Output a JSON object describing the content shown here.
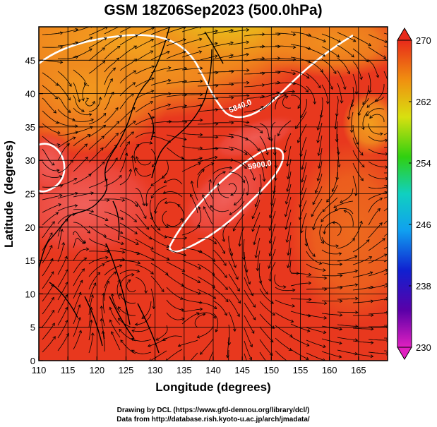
{
  "title": "GSM 18Z06Sep2023 (500.0hPa)",
  "chart_data": {
    "type": "heatmap",
    "title": "GSM 18Z06Sep2023 (500.0hPa)",
    "xlabel": "Longitude (degrees)",
    "ylabel": "Latitude  (degrees)",
    "xlim": [
      110,
      170
    ],
    "ylim": [
      0,
      50
    ],
    "x_ticks": [
      "110",
      "115",
      "120",
      "125",
      "130",
      "135",
      "140",
      "145",
      "150",
      "155",
      "160",
      "165"
    ],
    "y_ticks": [
      "0",
      "5",
      "10",
      "15",
      "20",
      "25",
      "30",
      "35",
      "40",
      "45"
    ],
    "grid": true,
    "overlays": [
      "streamlines",
      "coastlines"
    ],
    "contour_labels": [
      "5840.0",
      "5900.0"
    ],
    "colorbar": {
      "placement": "right",
      "min": 230,
      "max": 270,
      "tick_labels": [
        "270",
        "262",
        "254",
        "246",
        "238",
        "230"
      ]
    }
  },
  "colors": {
    "warm_red": "#e8341c",
    "orange": "#f28a1e",
    "yellow": "#e3d51a",
    "green": "#3fd40c",
    "contour": "#ffffff"
  },
  "credits": [
    "Drawing by DCL (https://www.gfd-dennou.org/library/dcl/)",
    "Data from http://database.rish.kyoto-u.ac.jp/arch/jmadata/"
  ]
}
